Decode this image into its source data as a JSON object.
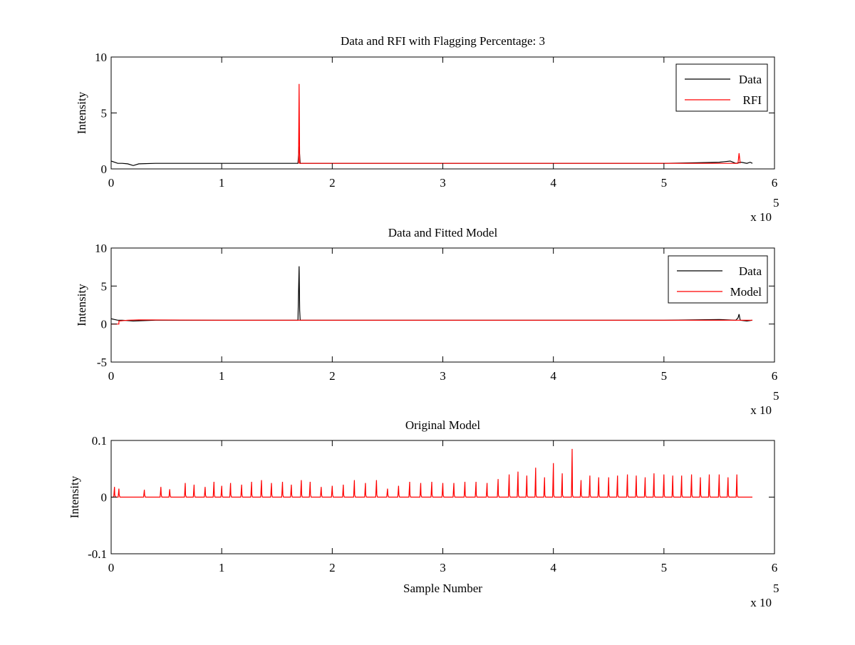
{
  "chart_data": [
    {
      "type": "line",
      "title": "Data and RFI with Flagging Percentage: 3",
      "xlabel": "",
      "ylabel": "Intensity",
      "xlim": [
        0,
        600000
      ],
      "ylim": [
        0,
        10
      ],
      "x_tick_values": [
        0,
        100000,
        200000,
        300000,
        400000,
        500000,
        600000
      ],
      "x_tick_labels": [
        "0",
        "1",
        "2",
        "3",
        "4",
        "5",
        "6"
      ],
      "y_tick_values": [
        0,
        5,
        10
      ],
      "y_tick_labels": [
        "0",
        "5",
        "10"
      ],
      "x_exponent_base": "x 10",
      "x_exponent_power": "5",
      "grid": false,
      "legend_placement": "top-right",
      "series": [
        {
          "name": "Data",
          "color": "#000000",
          "baseline": 0.5,
          "x": [
            0,
            3000,
            6000,
            10000,
            15000,
            20000,
            25000,
            40000,
            80000,
            120000,
            160000,
            169000,
            170000,
            171000,
            172000,
            200000,
            250000,
            300000,
            350000,
            400000,
            450000,
            500000,
            530000,
            550000,
            560000,
            565000,
            570000,
            575000,
            578000,
            580000
          ],
          "y": [
            0.7,
            0.6,
            0.5,
            0.5,
            0.45,
            0.3,
            0.45,
            0.5,
            0.5,
            0.5,
            0.5,
            0.5,
            2.0,
            0.5,
            0.5,
            0.5,
            0.5,
            0.5,
            0.5,
            0.5,
            0.5,
            0.5,
            0.55,
            0.6,
            0.7,
            0.5,
            0.6,
            0.5,
            0.6,
            0.5
          ]
        },
        {
          "name": "RFI",
          "color": "#ff0000",
          "x": [
            169500,
            170000,
            170500,
            567000,
            568000,
            569000
          ],
          "y": [
            0.5,
            7.6,
            0.5,
            0.5,
            1.4,
            0.5
          ]
        }
      ]
    },
    {
      "type": "line",
      "title": "Data and Fitted Model",
      "xlabel": "",
      "ylabel": "Intensity",
      "xlim": [
        0,
        600000
      ],
      "ylim": [
        -5,
        10
      ],
      "x_tick_values": [
        0,
        100000,
        200000,
        300000,
        400000,
        500000,
        600000
      ],
      "x_tick_labels": [
        "0",
        "1",
        "2",
        "3",
        "4",
        "5",
        "6"
      ],
      "y_tick_values": [
        -5,
        0,
        5,
        10
      ],
      "y_tick_labels": [
        "-5",
        "0",
        "5",
        "10"
      ],
      "x_exponent_base": "x 10",
      "x_exponent_power": "5",
      "grid": false,
      "legend_placement": "top-right",
      "series": [
        {
          "name": "Data",
          "color": "#000000",
          "x": [
            0,
            3000,
            6000,
            10000,
            20000,
            40000,
            100000,
            169000,
            170000,
            170500,
            171000,
            200000,
            300000,
            400000,
            500000,
            550000,
            565000,
            567000,
            568000,
            569000,
            575000,
            580000
          ],
          "y": [
            0.7,
            0.6,
            0.5,
            0.5,
            0.4,
            0.5,
            0.5,
            0.5,
            7.6,
            1.8,
            0.5,
            0.5,
            0.5,
            0.5,
            0.5,
            0.6,
            0.5,
            0.8,
            1.3,
            0.5,
            0.4,
            0.5
          ]
        },
        {
          "name": "Model",
          "color": "#ff0000",
          "x": [
            0,
            7000,
            7000,
            15000,
            25000,
            100000,
            200000,
            300000,
            400000,
            500000,
            580000
          ],
          "y": [
            0.0,
            0.0,
            0.4,
            0.5,
            0.55,
            0.5,
            0.5,
            0.5,
            0.5,
            0.5,
            0.5
          ]
        }
      ]
    },
    {
      "type": "line",
      "title": "Original Model",
      "xlabel": "Sample Number",
      "ylabel": "Intensity",
      "xlim": [
        0,
        600000
      ],
      "ylim": [
        -0.1,
        0.1
      ],
      "x_tick_values": [
        0,
        100000,
        200000,
        300000,
        400000,
        500000,
        600000
      ],
      "x_tick_labels": [
        "0",
        "1",
        "2",
        "3",
        "4",
        "5",
        "6"
      ],
      "y_tick_values": [
        -0.1,
        0,
        0.1
      ],
      "y_tick_labels": [
        "-0.1",
        "0",
        "0.1"
      ],
      "x_exponent_base": "x 10",
      "x_exponent_power": "5",
      "grid": false,
      "series": [
        {
          "color": "#ff0000",
          "x_end": 580000,
          "peaks_x": [
            3000,
            7000,
            30000,
            45000,
            53000,
            67000,
            75000,
            85000,
            93000,
            100000,
            108000,
            118000,
            127000,
            136000,
            145000,
            155000,
            163000,
            172000,
            180000,
            190000,
            200000,
            210000,
            220000,
            230000,
            240000,
            250000,
            260000,
            270000,
            280000,
            290000,
            300000,
            310000,
            320000,
            330000,
            340000,
            350000,
            360000,
            368000,
            376000,
            384000,
            392000,
            400000,
            408000,
            417000,
            425000,
            433000,
            441000,
            450000,
            458000,
            467000,
            475000,
            483000,
            491000,
            500000,
            508000,
            516000,
            525000,
            533000,
            541000,
            550000,
            558000,
            566000
          ],
          "peaks_y": [
            0.018,
            0.015,
            0.013,
            0.018,
            0.014,
            0.025,
            0.022,
            0.018,
            0.027,
            0.02,
            0.025,
            0.022,
            0.027,
            0.03,
            0.025,
            0.027,
            0.022,
            0.03,
            0.027,
            0.018,
            0.02,
            0.022,
            0.03,
            0.025,
            0.03,
            0.015,
            0.02,
            0.027,
            0.025,
            0.027,
            0.025,
            0.025,
            0.027,
            0.027,
            0.025,
            0.032,
            0.04,
            0.045,
            0.038,
            0.052,
            0.035,
            0.06,
            0.042,
            0.085,
            0.03,
            0.038,
            0.035,
            0.035,
            0.038,
            0.04,
            0.038,
            0.035,
            0.042,
            0.04,
            0.038,
            0.038,
            0.04,
            0.035,
            0.04,
            0.04,
            0.035,
            0.04
          ]
        }
      ]
    }
  ]
}
